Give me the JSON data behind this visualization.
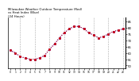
{
  "title": "Milwaukee Weather Outdoor Temperature (Red)\nvs Heat Index (Blue)\n(24 Hours)",
  "title_fontsize": 2.8,
  "background_color": "#ffffff",
  "grid_color": "#aaaaaa",
  "hours": [
    0,
    1,
    2,
    3,
    4,
    5,
    6,
    7,
    8,
    9,
    10,
    11,
    12,
    13,
    14,
    15,
    16,
    17,
    18,
    19,
    20,
    21,
    22,
    23
  ],
  "temp": [
    62,
    60,
    57,
    56,
    55,
    55,
    56,
    58,
    63,
    67,
    72,
    76,
    79,
    81,
    81,
    79,
    76,
    74,
    72,
    73,
    75,
    77,
    78,
    79
  ],
  "heat_index": [
    62,
    60,
    57,
    56,
    55,
    55,
    56,
    58,
    63,
    67,
    72,
    76,
    79,
    81,
    81,
    79,
    76,
    74,
    72,
    73,
    75,
    77,
    78,
    79
  ],
  "ylim": [
    48,
    88
  ],
  "ytick_vals": [
    50,
    55,
    60,
    65,
    70,
    75,
    80,
    85
  ],
  "ytick_labels": [
    "50",
    "55",
    "60",
    "65",
    "70",
    "75",
    "80",
    "85"
  ],
  "temp_color": "#dd0000",
  "heat_color": "#0000cc",
  "markersize": 1.8,
  "linewidth": 0.0,
  "linestyle": "None",
  "grid_linestyle": "--",
  "grid_linewidth": 0.4,
  "grid_positions": [
    2,
    5,
    8,
    11,
    14,
    17,
    20,
    23
  ]
}
